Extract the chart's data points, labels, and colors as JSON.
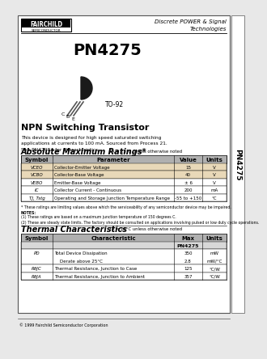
{
  "page_bg": "#e8e8e8",
  "content_bg": "#ffffff",
  "title_part": "PN4275",
  "subtitle": "NPN Switching Transistor",
  "description": "This device is designed for high speed saturated switching\napplications at currents to 100 mA. Sourced from Process 21.\nSee PN4248A for characteristics.",
  "header_right": "Discrete POWER & Signal\nTechnologies",
  "side_label": "PN4275",
  "fairchild_text": "FAIRCHILD",
  "fairchild_sub": "SEMICONDUCTOR",
  "package": "TO-92",
  "abs_max_title": "Absolute Maximum Ratings",
  "abs_max_note": "TA = 25°C unless otherwise noted",
  "abs_max_headers": [
    "Symbol",
    "Parameter",
    "Value",
    "Units"
  ],
  "abs_rows": [
    [
      "VCEO",
      "Collector-Emitter Voltage",
      "15",
      "V"
    ],
    [
      "VCBO",
      "Collector-Base Voltage",
      "40",
      "V"
    ],
    [
      "VEBO",
      "Emitter-Base Voltage",
      "± 6",
      "V"
    ],
    [
      "IC",
      "Collector Current - Continuous",
      "200",
      "mA"
    ],
    [
      "TJ, Tstg",
      "Operating and Storage Junction Temperature Range",
      "-55 to +150",
      "°C"
    ]
  ],
  "abs_note1": "* These ratings are limiting values above which the serviceability of any semiconductor device may be impaired.",
  "abs_notes": "(1) These ratings are based on a maximum junction temperature of 150 degrees C.\n(2) These are steady state limits. The factory should be consulted on applications involving pulsed or low duty cycle operations.",
  "thermal_title": "Thermal Characteristics",
  "thermal_note": "TA = 25°C unless otherwise noted",
  "thermal_headers": [
    "Symbol",
    "Characteristic",
    "Max",
    "Units"
  ],
  "thermal_subheader": "PN4275",
  "thermal_rows": [
    [
      "PD",
      "Total Device Dissipation\n    Derate above 25°C",
      "350\n2.8",
      "mW\nmW/°C"
    ],
    [
      "RθJC",
      "Thermal Resistance, Junction to Case",
      "125",
      "°C/W"
    ],
    [
      "RθJA",
      "Thermal Resistance, Junction to Ambient",
      "357",
      "°C/W"
    ]
  ],
  "footer": "© 1999 Fairchild Semiconductor Corporation",
  "table_header_color": "#b0b0b0",
  "table_row_colors": [
    "#e8d8b8",
    "#e8d8b8",
    "#ffffff",
    "#ffffff",
    "#ffffff"
  ],
  "thermal_row_colors": [
    "#ffffff",
    "#ffffff",
    "#ffffff"
  ]
}
